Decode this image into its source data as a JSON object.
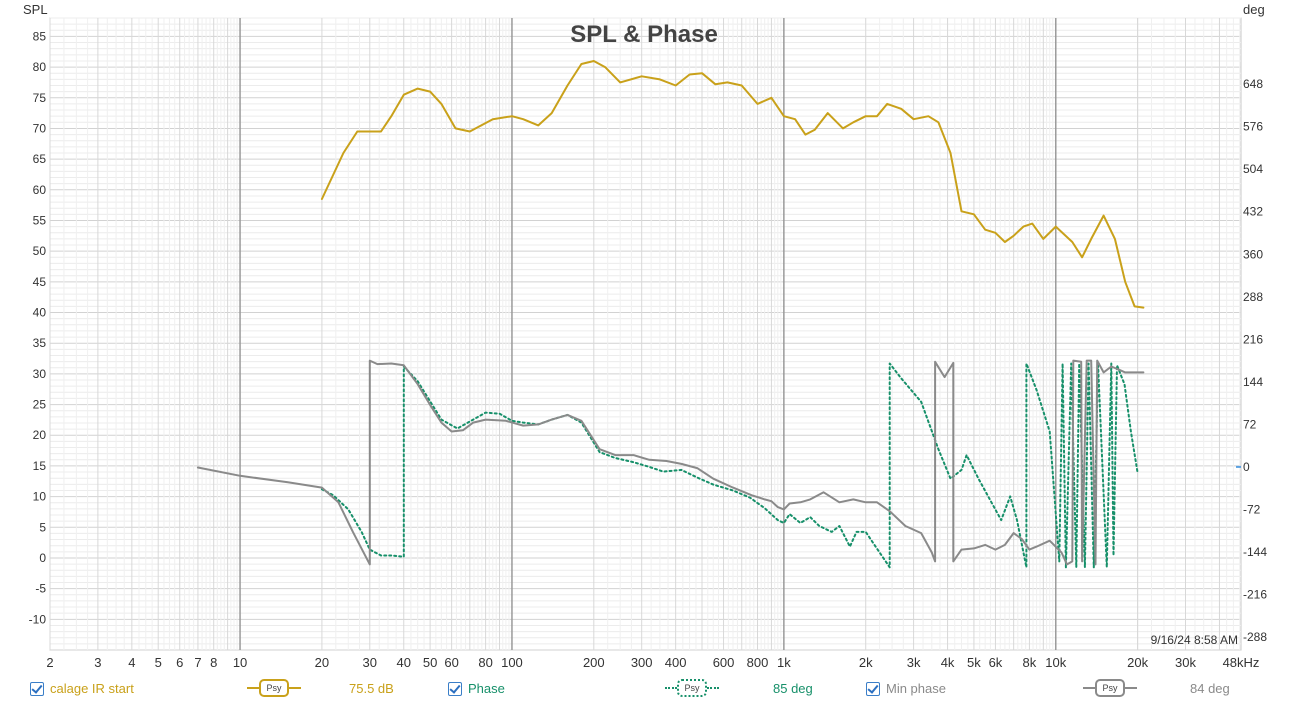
{
  "chart_data": {
    "type": "line",
    "title": "SPL & Phase",
    "y_left_label": "SPL",
    "y_right_label": "deg",
    "xscale": "log",
    "xlim": [
      2,
      48000
    ],
    "ylim_left": [
      -15,
      88
    ],
    "ylim_right": [
      -310,
      760
    ],
    "grid": true,
    "x_ticks": [
      {
        "v": 2,
        "t": "2"
      },
      {
        "v": 3,
        "t": "3"
      },
      {
        "v": 4,
        "t": "4"
      },
      {
        "v": 5,
        "t": "5"
      },
      {
        "v": 6,
        "t": "6"
      },
      {
        "v": 7,
        "t": "7"
      },
      {
        "v": 8,
        "t": "8"
      },
      {
        "v": 10,
        "t": "10"
      },
      {
        "v": 20,
        "t": "20"
      },
      {
        "v": 30,
        "t": "30"
      },
      {
        "v": 40,
        "t": "40"
      },
      {
        "v": 50,
        "t": "50"
      },
      {
        "v": 60,
        "t": "60"
      },
      {
        "v": 80,
        "t": "80"
      },
      {
        "v": 100,
        "t": "100"
      },
      {
        "v": 200,
        "t": "200"
      },
      {
        "v": 300,
        "t": "300"
      },
      {
        "v": 400,
        "t": "400"
      },
      {
        "v": 600,
        "t": "600"
      },
      {
        "v": 800,
        "t": "800"
      },
      {
        "v": 1000,
        "t": "1k"
      },
      {
        "v": 2000,
        "t": "2k"
      },
      {
        "v": 3000,
        "t": "3k"
      },
      {
        "v": 4000,
        "t": "4k"
      },
      {
        "v": 5000,
        "t": "5k"
      },
      {
        "v": 6000,
        "t": "6k"
      },
      {
        "v": 8000,
        "t": "8k"
      },
      {
        "v": 10000,
        "t": "10k"
      },
      {
        "v": 20000,
        "t": "20k"
      },
      {
        "v": 30000,
        "t": "30k"
      },
      {
        "v": 48000,
        "t": "48kHz"
      }
    ],
    "y_left_ticks": [
      85,
      80,
      75,
      70,
      65,
      60,
      55,
      50,
      45,
      40,
      35,
      30,
      25,
      20,
      15,
      10,
      5,
      0,
      -5,
      -10
    ],
    "y_right_ticks": [
      648,
      576,
      504,
      432,
      360,
      288,
      216,
      144,
      72,
      0,
      -72,
      -144,
      -216,
      -288
    ],
    "timestamp": "9/16/24 8:58 AM",
    "series": [
      {
        "name": "calage IR start",
        "axis": "left",
        "color": "#c9a11a",
        "style": "solid",
        "points": [
          [
            20,
            58.5
          ],
          [
            24,
            66
          ],
          [
            27,
            69.5
          ],
          [
            30,
            69.5
          ],
          [
            33,
            69.5
          ],
          [
            36,
            72
          ],
          [
            40,
            75.5
          ],
          [
            45,
            76.5
          ],
          [
            50,
            76
          ],
          [
            55,
            74
          ],
          [
            62,
            70
          ],
          [
            70,
            69.5
          ],
          [
            85,
            71.5
          ],
          [
            100,
            72
          ],
          [
            110,
            71.5
          ],
          [
            125,
            70.5
          ],
          [
            140,
            72.5
          ],
          [
            160,
            77
          ],
          [
            180,
            80.5
          ],
          [
            200,
            81
          ],
          [
            220,
            80
          ],
          [
            250,
            77.5
          ],
          [
            300,
            78.5
          ],
          [
            350,
            78
          ],
          [
            400,
            77
          ],
          [
            450,
            78.8
          ],
          [
            500,
            79
          ],
          [
            560,
            77.2
          ],
          [
            620,
            77.5
          ],
          [
            700,
            77
          ],
          [
            800,
            74
          ],
          [
            900,
            75
          ],
          [
            1000,
            72
          ],
          [
            1100,
            71.5
          ],
          [
            1200,
            69
          ],
          [
            1300,
            69.8
          ],
          [
            1450,
            72.5
          ],
          [
            1650,
            70
          ],
          [
            1800,
            71
          ],
          [
            2000,
            72
          ],
          [
            2200,
            72
          ],
          [
            2400,
            74
          ],
          [
            2700,
            73.2
          ],
          [
            3000,
            71.5
          ],
          [
            3400,
            72
          ],
          [
            3700,
            71
          ],
          [
            4100,
            66
          ],
          [
            4500,
            56.5
          ],
          [
            5000,
            56
          ],
          [
            5500,
            53.5
          ],
          [
            6000,
            53
          ],
          [
            6500,
            51.5
          ],
          [
            7000,
            52.5
          ],
          [
            7600,
            54
          ],
          [
            8200,
            54.5
          ],
          [
            9000,
            52
          ],
          [
            10000,
            54
          ],
          [
            11500,
            51.5
          ],
          [
            12500,
            49
          ],
          [
            13500,
            52
          ],
          [
            15000,
            55.8
          ],
          [
            16500,
            52
          ],
          [
            18000,
            45
          ],
          [
            19500,
            41
          ],
          [
            21000,
            40.8
          ]
        ]
      },
      {
        "name": "Phase",
        "axis": "right",
        "color": "#17906a",
        "style": "dotted",
        "points": [
          [
            20,
            -38
          ],
          [
            22,
            -48
          ],
          [
            25,
            -72
          ],
          [
            28,
            -110
          ],
          [
            30,
            -140
          ],
          [
            33,
            -150
          ],
          [
            36,
            -150
          ],
          [
            40,
            -152
          ],
          [
            40,
            170
          ],
          [
            45,
            145
          ],
          [
            55,
            80
          ],
          [
            63,
            65
          ],
          [
            72,
            80
          ],
          [
            80,
            92
          ],
          [
            90,
            90
          ],
          [
            100,
            78
          ],
          [
            110,
            75
          ],
          [
            125,
            72
          ],
          [
            140,
            80
          ],
          [
            160,
            88
          ],
          [
            180,
            75
          ],
          [
            210,
            25
          ],
          [
            240,
            15
          ],
          [
            280,
            8
          ],
          [
            320,
            0
          ],
          [
            360,
            -8
          ],
          [
            420,
            -5
          ],
          [
            480,
            -18
          ],
          [
            550,
            -30
          ],
          [
            650,
            -40
          ],
          [
            750,
            -52
          ],
          [
            850,
            -70
          ],
          [
            950,
            -90
          ],
          [
            1000,
            -95
          ],
          [
            1050,
            -80
          ],
          [
            1150,
            -95
          ],
          [
            1250,
            -85
          ],
          [
            1350,
            -100
          ],
          [
            1500,
            -110
          ],
          [
            1600,
            -100
          ],
          [
            1750,
            -135
          ],
          [
            1850,
            -110
          ],
          [
            2000,
            -110
          ],
          [
            2250,
            -145
          ],
          [
            2450,
            -170
          ],
          [
            2450,
            175
          ],
          [
            2700,
            150
          ],
          [
            3200,
            110
          ],
          [
            3700,
            30
          ],
          [
            4100,
            -20
          ],
          [
            4500,
            -5
          ],
          [
            4700,
            20
          ],
          [
            5200,
            -20
          ],
          [
            5800,
            -60
          ],
          [
            6300,
            -90
          ],
          [
            6800,
            -50
          ],
          [
            7200,
            -90
          ],
          [
            7800,
            -170
          ],
          [
            7800,
            175
          ],
          [
            8500,
            130
          ],
          [
            9500,
            60
          ],
          [
            10300,
            -160
          ],
          [
            10600,
            175
          ],
          [
            10900,
            -170
          ],
          [
            11400,
            175
          ],
          [
            11900,
            -170
          ],
          [
            12200,
            175
          ],
          [
            12800,
            -170
          ],
          [
            13200,
            175
          ],
          [
            13800,
            -170
          ],
          [
            14300,
            175
          ],
          [
            15400,
            -170
          ],
          [
            16000,
            175
          ],
          [
            16300,
            -150
          ],
          [
            16800,
            172
          ],
          [
            17900,
            140
          ],
          [
            18900,
            60
          ],
          [
            20000,
            -10
          ]
        ]
      },
      {
        "name": "Min phase",
        "axis": "right",
        "color": "#8a8a8a",
        "style": "solid",
        "points": [
          [
            7,
            -1
          ],
          [
            10,
            -15
          ],
          [
            15,
            -26
          ],
          [
            20,
            -35
          ],
          [
            23,
            -60
          ],
          [
            26,
            -110
          ],
          [
            30,
            -165
          ],
          [
            30,
            180
          ],
          [
            32,
            174
          ],
          [
            36,
            175
          ],
          [
            40,
            172
          ],
          [
            45,
            140
          ],
          [
            50,
            105
          ],
          [
            55,
            75
          ],
          [
            60,
            60
          ],
          [
            66,
            62
          ],
          [
            72,
            75
          ],
          [
            80,
            80
          ],
          [
            95,
            78
          ],
          [
            110,
            70
          ],
          [
            125,
            72
          ],
          [
            140,
            80
          ],
          [
            160,
            88
          ],
          [
            180,
            78
          ],
          [
            210,
            30
          ],
          [
            240,
            20
          ],
          [
            280,
            20
          ],
          [
            320,
            12
          ],
          [
            370,
            10
          ],
          [
            420,
            5
          ],
          [
            480,
            -2
          ],
          [
            550,
            -20
          ],
          [
            650,
            -35
          ],
          [
            760,
            -48
          ],
          [
            850,
            -55
          ],
          [
            900,
            -58
          ],
          [
            950,
            -68
          ],
          [
            1000,
            -72
          ],
          [
            1050,
            -62
          ],
          [
            1150,
            -60
          ],
          [
            1250,
            -55
          ],
          [
            1400,
            -43
          ],
          [
            1600,
            -60
          ],
          [
            1800,
            -55
          ],
          [
            2000,
            -60
          ],
          [
            2200,
            -60
          ],
          [
            2450,
            -75
          ],
          [
            2800,
            -100
          ],
          [
            3200,
            -112
          ],
          [
            3500,
            -145
          ],
          [
            3600,
            -160
          ],
          [
            3600,
            178
          ],
          [
            3900,
            152
          ],
          [
            4200,
            176
          ],
          [
            4200,
            -160
          ],
          [
            4500,
            -140
          ],
          [
            5000,
            -138
          ],
          [
            5500,
            -132
          ],
          [
            6000,
            -140
          ],
          [
            6500,
            -132
          ],
          [
            7000,
            -112
          ],
          [
            7500,
            -122
          ],
          [
            8000,
            -140
          ],
          [
            8500,
            -135
          ],
          [
            9500,
            -125
          ],
          [
            10500,
            -145
          ],
          [
            11000,
            -165
          ],
          [
            11500,
            -160
          ],
          [
            11600,
            180
          ],
          [
            12400,
            178
          ],
          [
            12500,
            -160
          ],
          [
            13000,
            180
          ],
          [
            13500,
            180
          ],
          [
            14000,
            -165
          ],
          [
            14200,
            180
          ],
          [
            15000,
            160
          ],
          [
            16000,
            170
          ],
          [
            17000,
            165
          ],
          [
            18000,
            160
          ],
          [
            19500,
            160
          ],
          [
            21000,
            160
          ]
        ]
      }
    ]
  },
  "legend": {
    "items": [
      {
        "label": "calage IR start",
        "value": "75.5 dB",
        "color": "#c9a11a",
        "psy": "Psy"
      },
      {
        "label": "Phase",
        "value": "85 deg",
        "color": "#17906a",
        "psy": "Psy"
      },
      {
        "label": "Min phase",
        "value": "84 deg",
        "color": "#8a8a8a",
        "psy": "Psy"
      }
    ]
  }
}
